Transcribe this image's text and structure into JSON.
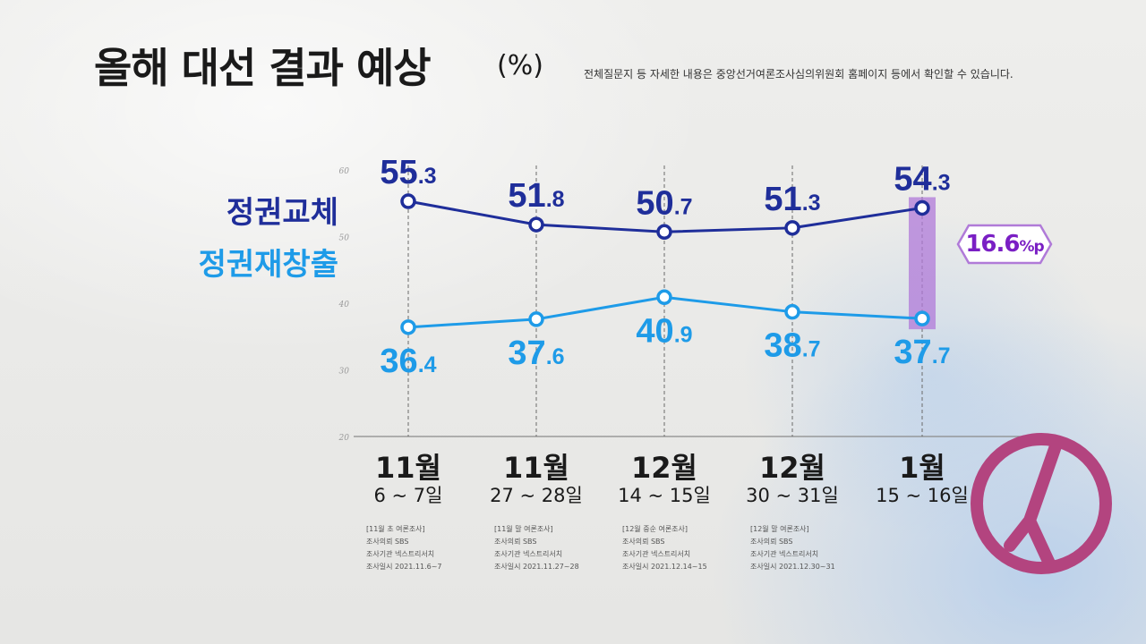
{
  "title": "올해 대선 결과 예상",
  "title_unit": "(%)",
  "note": "전체질문지 등 자세한 내용은 중앙선거여론조사심의위원회 홈페이지 등에서 확인할 수 있습니다.",
  "colors": {
    "series_a": "#1f2e9a",
    "series_b": "#1e9be8",
    "highlight": "#b07ad8",
    "badge_text": "#7a1fc4",
    "logo": "#b3447f"
  },
  "gap_label": {
    "value": "16.6",
    "unit": "%p"
  },
  "logo_icon": "vote-mark-icon",
  "chart_data": {
    "type": "line",
    "title": "올해 대선 결과 예상",
    "unit": "%",
    "yticks": [
      "60",
      "50",
      "40",
      "30",
      "20"
    ],
    "ylim": [
      20,
      60
    ],
    "grid": false,
    "legend": "left",
    "categories": [
      {
        "month": "11월",
        "days": "6 ~ 7일"
      },
      {
        "month": "11월",
        "days": "27 ~ 28일"
      },
      {
        "month": "12월",
        "days": "14 ~ 15일"
      },
      {
        "month": "12월",
        "days": "30 ~ 31일"
      },
      {
        "month": "1월",
        "days": "15 ~ 16일"
      }
    ],
    "series": [
      {
        "name": "정권교체",
        "values": [
          55.3,
          51.8,
          50.7,
          51.3,
          54.3
        ],
        "labels": [
          {
            "int": "55",
            "dec": ".3"
          },
          {
            "int": "51",
            "dec": ".8"
          },
          {
            "int": "50",
            "dec": ".7"
          },
          {
            "int": "51",
            "dec": ".3"
          },
          {
            "int": "54",
            "dec": ".3"
          }
        ]
      },
      {
        "name": "정권재창출",
        "values": [
          36.4,
          37.6,
          40.9,
          38.7,
          37.7
        ],
        "labels": [
          {
            "int": "36",
            "dec": ".4"
          },
          {
            "int": "37",
            "dec": ".6"
          },
          {
            "int": "40",
            "dec": ".9"
          },
          {
            "int": "38",
            "dec": ".7"
          },
          {
            "int": "37",
            "dec": ".7"
          }
        ]
      }
    ]
  },
  "sources": [
    [
      "[11월 초 여론조사]",
      "조사의뢰 SBS",
      "조사기관 넥스트리서치",
      "조사일시 2021.11.6~7"
    ],
    [
      "[11월 말 여론조사]",
      "조사의뢰 SBS",
      "조사기관 넥스트리서치",
      "조사일시 2021.11.27~28"
    ],
    [
      "[12월 중순 여론조사]",
      "조사의뢰 SBS",
      "조사기관 넥스트리서치",
      "조사일시 2021.12.14~15"
    ],
    [
      "[12월 말 여론조사]",
      "조사의뢰 SBS",
      "조사기관 넥스트리서치",
      "조사일시 2021.12.30~31"
    ]
  ]
}
